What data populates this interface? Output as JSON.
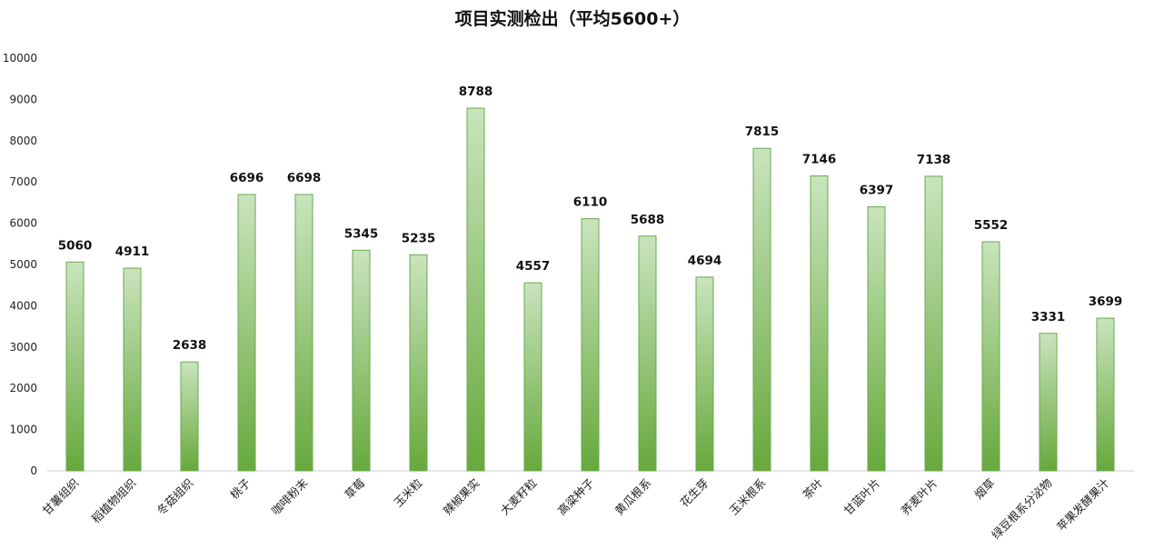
{
  "chart_data": {
    "type": "bar",
    "title": "项目实测检出（平均5600+）",
    "xlabel": "",
    "ylabel": "",
    "ylim": [
      0,
      10000
    ],
    "yticks": [
      0,
      1000,
      2000,
      3000,
      4000,
      5000,
      6000,
      7000,
      8000,
      9000,
      10000
    ],
    "grid": false,
    "legend": "none",
    "bar_color_top": "#c9e4bd",
    "bar_color_bottom": "#67a93c",
    "bar_edge_color": "#6aa84f",
    "categories": [
      "甘薯组织",
      "稻植物组织",
      "冬菇组织",
      "桃子",
      "咖啡粉末",
      "草莓",
      "玉米粒",
      "辣椒果实",
      "大麦籽粒",
      "高粱种子",
      "黄瓜根系",
      "花生芽",
      "玉米根系",
      "茶叶",
      "甘蓝叶片",
      "荞麦叶片",
      "烟草",
      "绿豆根系分泌物",
      "苹果发酵果汁"
    ],
    "values": [
      5060,
      4911,
      2638,
      6696,
      6698,
      5345,
      5235,
      8788,
      4557,
      6110,
      5688,
      4694,
      7815,
      7146,
      6397,
      7138,
      5552,
      3331,
      3699
    ]
  }
}
